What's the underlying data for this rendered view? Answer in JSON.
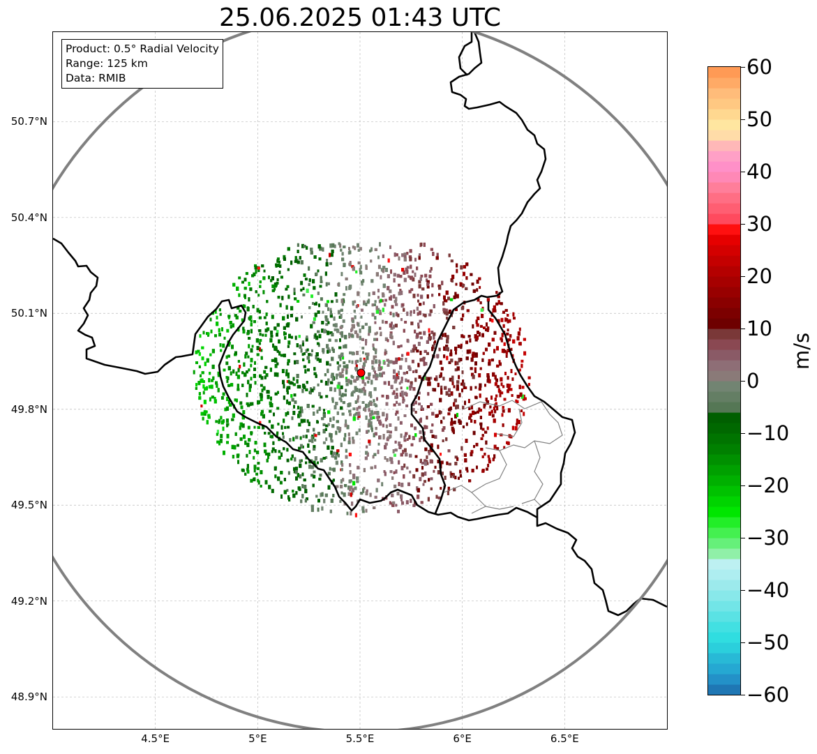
{
  "map": {
    "title": "25.06.2025 01:43 UTC",
    "info_box": {
      "product": "Product: 0.5° Radial Velocity",
      "range": "Range: 125 km",
      "data": "Data: RMIB"
    },
    "extent": {
      "lon_min": 4.0,
      "lon_max": 7.0,
      "lat_min": 48.8,
      "lat_max": 50.98
    },
    "radar_site": {
      "lon": 5.505,
      "lat": 49.914
    },
    "range_ring_km": 125,
    "latitude_labels": [
      {
        "lat": 50.7,
        "label": "50.7°N"
      },
      {
        "lat": 50.4,
        "label": "50.4°N"
      },
      {
        "lat": 50.1,
        "label": "50.1°N"
      },
      {
        "lat": 49.8,
        "label": "49.8°N"
      },
      {
        "lat": 49.5,
        "label": "49.5°N"
      },
      {
        "lat": 49.2,
        "label": "49.2°N"
      },
      {
        "lat": 48.9,
        "label": "48.9°N"
      }
    ],
    "longitude_labels": [
      {
        "lon": 4.5,
        "label": "4.5°E"
      },
      {
        "lon": 5.0,
        "label": "5°E"
      },
      {
        "lon": 5.5,
        "label": "5.5°E"
      },
      {
        "lon": 6.0,
        "label": "6°E"
      },
      {
        "lon": 6.5,
        "label": "6.5°E"
      }
    ],
    "colors": {
      "ring": "#808080",
      "border": "#000000",
      "admin_border": "#808080",
      "grid": "#bbbbbb",
      "radar_marker": "#ff0000"
    }
  },
  "colorbar": {
    "unit": "m/s",
    "min": -60,
    "max": 60,
    "ticks": [
      {
        "value": 60,
        "label": "60"
      },
      {
        "value": 50,
        "label": "50"
      },
      {
        "value": 40,
        "label": "40"
      },
      {
        "value": 30,
        "label": "30"
      },
      {
        "value": 20,
        "label": "20"
      },
      {
        "value": 10,
        "label": "10"
      },
      {
        "value": 0,
        "label": "0"
      },
      {
        "value": -10,
        "label": "−10"
      },
      {
        "value": -20,
        "label": "−20"
      },
      {
        "value": -30,
        "label": "−30"
      },
      {
        "value": -40,
        "label": "−40"
      },
      {
        "value": -50,
        "label": "−50"
      },
      {
        "value": -60,
        "label": "−60"
      }
    ],
    "bins": [
      {
        "from": -60,
        "to": -58,
        "color": "#1f77b4"
      },
      {
        "from": -58,
        "to": -56,
        "color": "#2391c8"
      },
      {
        "from": -56,
        "to": -54,
        "color": "#25a8d2"
      },
      {
        "from": -54,
        "to": -52,
        "color": "#28b9d6"
      },
      {
        "from": -52,
        "to": -50,
        "color": "#2bcfdc"
      },
      {
        "from": -50,
        "to": -48,
        "color": "#30dde0"
      },
      {
        "from": -48,
        "to": -46,
        "color": "#42e0e2"
      },
      {
        "from": -46,
        "to": -44,
        "color": "#5ae2e4"
      },
      {
        "from": -44,
        "to": -42,
        "color": "#72e5e7"
      },
      {
        "from": -42,
        "to": -40,
        "color": "#88e8ea"
      },
      {
        "from": -40,
        "to": -38,
        "color": "#9ceaec"
      },
      {
        "from": -38,
        "to": -36,
        "color": "#aeeef0"
      },
      {
        "from": -36,
        "to": -34,
        "color": "#bdf0f2"
      },
      {
        "from": -34,
        "to": -32,
        "color": "#90f0a8"
      },
      {
        "from": -32,
        "to": -30,
        "color": "#66f07a"
      },
      {
        "from": -30,
        "to": -28,
        "color": "#44f050"
      },
      {
        "from": -28,
        "to": -26,
        "color": "#22ee28"
      },
      {
        "from": -26,
        "to": -24,
        "color": "#00e600"
      },
      {
        "from": -24,
        "to": -22,
        "color": "#00d400"
      },
      {
        "from": -22,
        "to": -20,
        "color": "#00c200"
      },
      {
        "from": -20,
        "to": -18,
        "color": "#00b000"
      },
      {
        "from": -18,
        "to": -16,
        "color": "#00a000"
      },
      {
        "from": -16,
        "to": -14,
        "color": "#009000"
      },
      {
        "from": -14,
        "to": -12,
        "color": "#008000"
      },
      {
        "from": -12,
        "to": -10,
        "color": "#007400"
      },
      {
        "from": -10,
        "to": -8,
        "color": "#006800"
      },
      {
        "from": -8,
        "to": -6,
        "color": "#005f00"
      },
      {
        "from": -6,
        "to": -4,
        "color": "#557755"
      },
      {
        "from": -4,
        "to": -2,
        "color": "#647e64"
      },
      {
        "from": -2,
        "to": 0,
        "color": "#728472"
      },
      {
        "from": 0,
        "to": 2,
        "color": "#8a7a78"
      },
      {
        "from": 2,
        "to": 4,
        "color": "#8e6e76"
      },
      {
        "from": 4,
        "to": 6,
        "color": "#8a5a66"
      },
      {
        "from": 6,
        "to": 8,
        "color": "#8a4852"
      },
      {
        "from": 8,
        "to": 10,
        "color": "#7a3838"
      },
      {
        "from": 10,
        "to": 12,
        "color": "#6e0000"
      },
      {
        "from": 12,
        "to": 14,
        "color": "#7c0000"
      },
      {
        "from": 14,
        "to": 16,
        "color": "#8a0000"
      },
      {
        "from": 16,
        "to": 18,
        "color": "#980000"
      },
      {
        "from": 18,
        "to": 20,
        "color": "#a60000"
      },
      {
        "from": 20,
        "to": 22,
        "color": "#b40000"
      },
      {
        "from": 22,
        "to": 24,
        "color": "#c40000"
      },
      {
        "from": 24,
        "to": 26,
        "color": "#d40000"
      },
      {
        "from": 26,
        "to": 28,
        "color": "#e60000"
      },
      {
        "from": 28,
        "to": 30,
        "color": "#ff1010"
      },
      {
        "from": 30,
        "to": 32,
        "color": "#ff4a5e"
      },
      {
        "from": 32,
        "to": 34,
        "color": "#ff5e72"
      },
      {
        "from": 34,
        "to": 36,
        "color": "#ff6e84"
      },
      {
        "from": 36,
        "to": 38,
        "color": "#ff7e9a"
      },
      {
        "from": 38,
        "to": 40,
        "color": "#ff88b6"
      },
      {
        "from": 40,
        "to": 42,
        "color": "#ff90c8"
      },
      {
        "from": 42,
        "to": 44,
        "color": "#ffa0c6"
      },
      {
        "from": 44,
        "to": 46,
        "color": "#ffb8b8"
      },
      {
        "from": 46,
        "to": 48,
        "color": "#ffdca8"
      },
      {
        "from": 48,
        "to": 50,
        "color": "#ffe6a0"
      },
      {
        "from": 50,
        "to": 52,
        "color": "#ffd890"
      },
      {
        "from": 52,
        "to": 54,
        "color": "#ffc882"
      },
      {
        "from": 54,
        "to": 56,
        "color": "#ffbc7a"
      },
      {
        "from": 56,
        "to": 58,
        "color": "#ffaa66"
      },
      {
        "from": 58,
        "to": 60,
        "color": "#ff9a55"
      }
    ]
  }
}
